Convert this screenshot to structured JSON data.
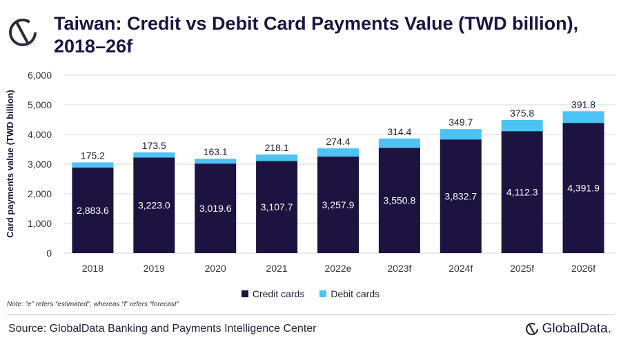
{
  "header": {
    "title": "Taiwan: Credit vs Debit Card Payments Value (TWD billion), 2018–26f"
  },
  "colors": {
    "credit": "#1c1340",
    "debit": "#4cc3f2",
    "title": "#1c1340"
  },
  "chart_data": {
    "type": "bar",
    "stacked": true,
    "categories": [
      "2018",
      "2019",
      "2020",
      "2021",
      "2022e",
      "2023f",
      "2024f",
      "2025f",
      "2026f"
    ],
    "series": [
      {
        "name": "Credit cards",
        "values": [
          2883.6,
          3223.0,
          3019.6,
          3107.7,
          3257.9,
          3550.8,
          3832.7,
          4112.3,
          4391.9
        ],
        "labels": [
          "2,883.6",
          "3,223.0",
          "3,019.6",
          "3,107.7",
          "3,257.9",
          "3,550.8",
          "3,832.7",
          "4,112.3",
          "4,391.9"
        ]
      },
      {
        "name": "Debit cards",
        "values": [
          175.2,
          173.5,
          163.1,
          218.1,
          274.4,
          314.4,
          349.7,
          375.8,
          391.8
        ],
        "labels": [
          "175.2",
          "173.5",
          "163.1",
          "218.1",
          "274.4",
          "314.4",
          "349.7",
          "375.8",
          "391.8"
        ]
      }
    ],
    "ylabel": "Card payments value (TWD billion)",
    "ylim": [
      0,
      6000
    ],
    "yticks": [
      0,
      1000,
      2000,
      3000,
      4000,
      5000,
      6000
    ],
    "ytick_labels": [
      "0",
      "1,000",
      "2,000",
      "3,000",
      "4,000",
      "5,000",
      "6,000"
    ],
    "grid": true,
    "legend_position": "bottom"
  },
  "legend": {
    "credit_label": "Credit cards",
    "debit_label": "Debit cards"
  },
  "footer": {
    "note": "Note: “e” refers “estimated”, whereas “f” refers “forecast”",
    "source": "Source: GlobalData Banking and Payments Intelligence Center",
    "brand": "GlobalData."
  }
}
